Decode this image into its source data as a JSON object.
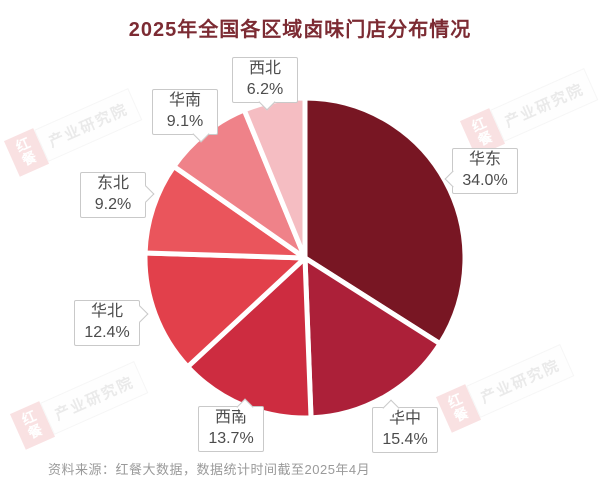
{
  "title": "2025年全国各区域卤味门店分布情况",
  "source": "资料来源：红餐大数据，数据统计时间截至2025年4月",
  "watermark": {
    "brand": "红餐",
    "institute": "产业研究院"
  },
  "colors": {
    "title": "#7c2b33",
    "label_text": "#4c4c4c",
    "callout_border": "#c9c9c9",
    "source_text": "#9a9a9a"
  },
  "chart_data": {
    "type": "pie",
    "title": "2025年全国各区域卤味门店分布情况",
    "unit": "%",
    "start_angle": "top, clockwise",
    "legend_position": "callout labels around pie",
    "categories": [
      "华东",
      "华中",
      "西南",
      "华北",
      "东北",
      "华南",
      "西北"
    ],
    "values": [
      34.0,
      15.4,
      13.7,
      12.4,
      9.2,
      9.1,
      6.2
    ],
    "colors": [
      "#781623",
      "#AC2039",
      "#CD2C40",
      "#E2404B",
      "#EA555C",
      "#EF8289",
      "#F5BDC2"
    ],
    "labels": [
      {
        "name": "华东",
        "value": "34.0%"
      },
      {
        "name": "华中",
        "value": "15.4%"
      },
      {
        "name": "西南",
        "value": "13.7%"
      },
      {
        "name": "华北",
        "value": "12.4%"
      },
      {
        "name": "东北",
        "value": "9.2%"
      },
      {
        "name": "华南",
        "value": "9.1%"
      },
      {
        "name": "西北",
        "value": "6.2%"
      }
    ]
  }
}
